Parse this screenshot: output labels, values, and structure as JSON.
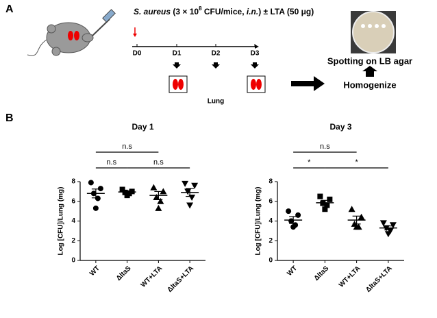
{
  "panel_a": {
    "label": "A",
    "treatment": [
      "S. aureus",
      " (3 × 10",
      "8",
      " CFU/mice, ",
      "i.n.",
      ") ± LTA (50 μg)"
    ],
    "days": [
      "D0",
      "D1",
      "D2",
      "D3"
    ],
    "organ": "Lung",
    "step1": "Homogenize",
    "step2": "Spotting on LB agar"
  },
  "panel_b": {
    "label": "B"
  },
  "chart_data": [
    {
      "type": "scatter",
      "title": "Day 1",
      "y_label": "Log [CFU]/Lung (mg)",
      "categories": [
        "WT",
        "ΔltaS",
        "WT+LTA",
        "ΔltaS+LTA"
      ],
      "markers": [
        "circle",
        "square",
        "triangle",
        "triangle-down"
      ],
      "points": [
        [
          7.9,
          7.3,
          6.8,
          6.3,
          5.3
        ],
        [
          7.2,
          7.0,
          6.9,
          6.8,
          6.6
        ],
        [
          7.4,
          7.0,
          6.4,
          6.0,
          5.3
        ],
        [
          7.8,
          7.6,
          7.0,
          6.4,
          5.6
        ]
      ],
      "means": [
        6.8,
        6.95,
        6.6,
        6.9
      ],
      "sems": [
        0.45,
        0.12,
        0.4,
        0.4
      ],
      "ylim": [
        0,
        8
      ],
      "yticks": [
        0,
        2,
        4,
        6,
        8
      ],
      "color": "#000000",
      "comparisons": [
        {
          "groups": [
            0,
            2
          ],
          "label": "n.s"
        },
        {
          "groups": [
            0,
            1
          ],
          "label": "n.s"
        },
        {
          "groups": [
            1,
            3
          ],
          "label": "n.s"
        }
      ]
    },
    {
      "type": "scatter",
      "title": "Day 3",
      "y_label": "Log [CFU]/Lung (mg)",
      "categories": [
        "WT",
        "ΔltaS",
        "WT+LTA",
        "ΔltaS+LTA"
      ],
      "markers": [
        "circle",
        "square",
        "triangle",
        "triangle-down"
      ],
      "points": [
        [
          5.0,
          4.6,
          4.0,
          3.6,
          3.4
        ],
        [
          6.5,
          6.2,
          5.8,
          5.6,
          5.2
        ],
        [
          5.2,
          4.4,
          3.7,
          3.4,
          3.4
        ],
        [
          3.8,
          3.6,
          3.3,
          3.0,
          2.7
        ]
      ],
      "means": [
        4.1,
        5.85,
        4.1,
        3.3
      ],
      "sems": [
        0.35,
        0.25,
        0.4,
        0.2
      ],
      "ylim": [
        0,
        8
      ],
      "yticks": [
        0,
        2,
        4,
        6,
        8
      ],
      "color": "#000000",
      "comparisons": [
        {
          "groups": [
            0,
            2
          ],
          "label": "n.s"
        },
        {
          "groups": [
            0,
            1
          ],
          "label": "*"
        },
        {
          "groups": [
            1,
            3
          ],
          "label": "*"
        }
      ]
    }
  ]
}
